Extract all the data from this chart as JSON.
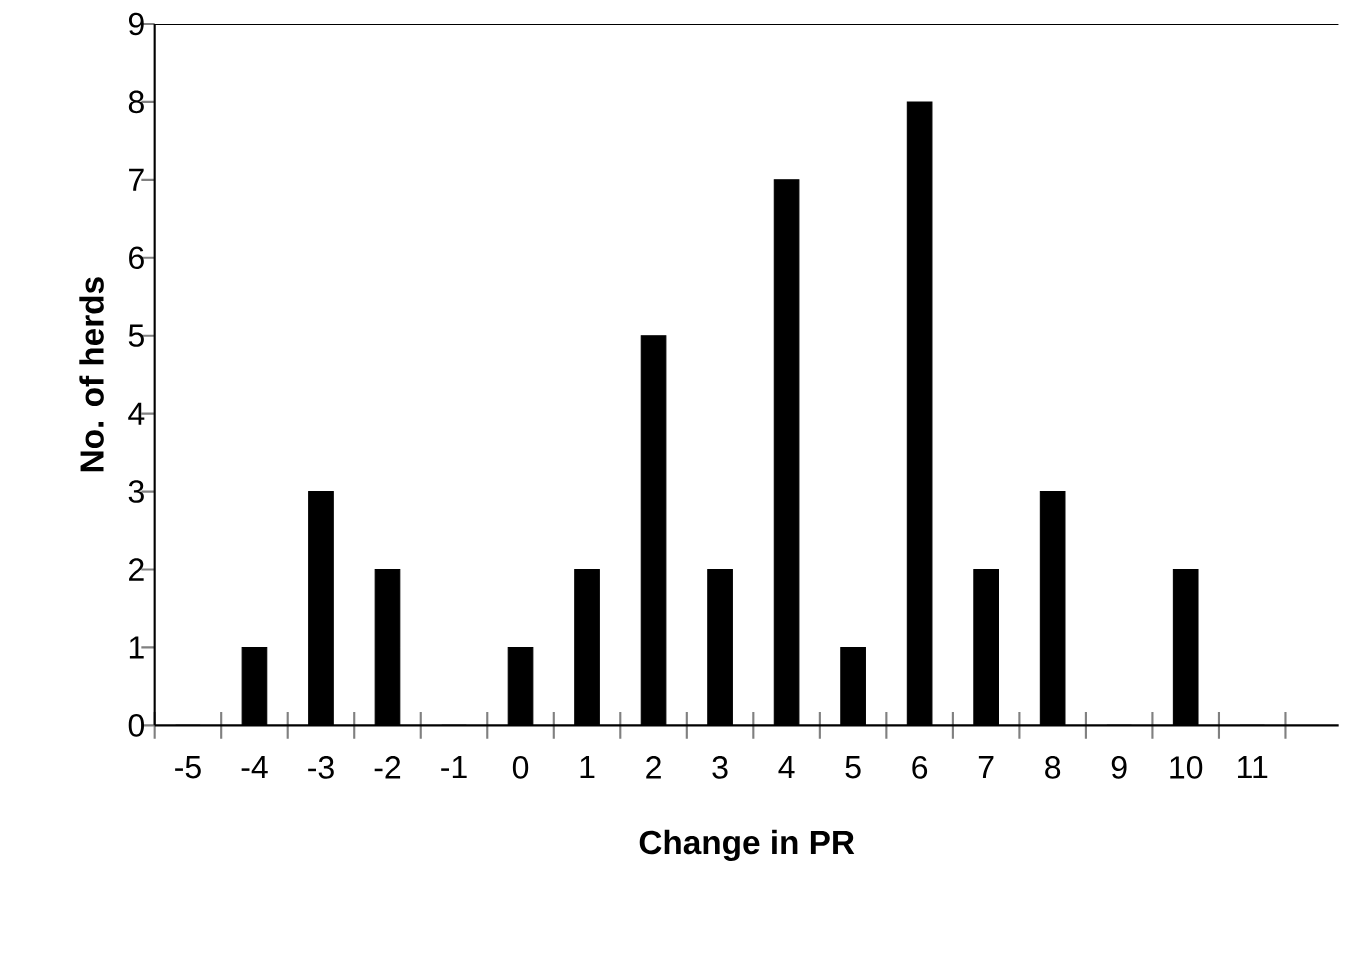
{
  "chart_data": {
    "type": "bar",
    "xlabel": "Change in PR",
    "ylabel": "No. of herds",
    "categories": [
      "-5",
      "-4",
      "-3",
      "-2",
      "-1",
      "0",
      "1",
      "2",
      "3",
      "4",
      "5",
      "6",
      "7",
      "8",
      "9",
      "10",
      "11"
    ],
    "values": [
      0,
      1,
      3,
      2,
      0,
      1,
      2,
      5,
      2,
      7,
      1,
      8,
      2,
      3,
      0,
      2,
      0
    ],
    "color": "#000000",
    "ylim": [
      0,
      9
    ],
    "yticks": [
      0,
      1,
      2,
      3,
      4,
      5,
      6,
      7,
      8,
      9
    ],
    "grid": false
  }
}
